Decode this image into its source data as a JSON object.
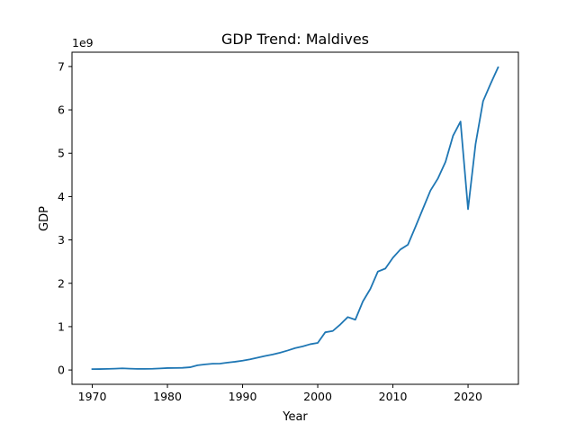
{
  "chart_data": {
    "type": "line",
    "title": "GDP Trend: Maldives",
    "xlabel": "Year",
    "ylabel": "GDP",
    "y_scale_label": "1e9",
    "xlim": [
      1967.3,
      2026.7
    ],
    "ylim": [
      -330000000,
      7330000000
    ],
    "x_ticks": [
      1970,
      1980,
      1990,
      2000,
      2010,
      2020
    ],
    "x_tick_labels": [
      "1970",
      "1980",
      "1990",
      "2000",
      "2010",
      "2020"
    ],
    "y_ticks": [
      0,
      1000000000,
      2000000000,
      3000000000,
      4000000000,
      5000000000,
      6000000000,
      7000000000
    ],
    "y_tick_labels": [
      "0",
      "1",
      "2",
      "3",
      "4",
      "5",
      "6",
      "7"
    ],
    "grid": false,
    "line_color": "#1f77b4",
    "series": [
      {
        "x": [
          1970,
          1971,
          1972,
          1973,
          1974,
          1975,
          1976,
          1977,
          1978,
          1979,
          1980,
          1981,
          1982,
          1983,
          1984,
          1985,
          1986,
          1987,
          1988,
          1989,
          1990,
          1991,
          1992,
          1993,
          1994,
          1995,
          1996,
          1997,
          1998,
          1999,
          2000,
          2001,
          2002,
          2003,
          2004,
          2005,
          2006,
          2007,
          2008,
          2009,
          2010,
          2011,
          2012,
          2013,
          2014,
          2015,
          2016,
          2017,
          2018,
          2019,
          2020,
          2021,
          2022,
          2023,
          2024
        ],
        "values": [
          20000000,
          22000000,
          26000000,
          31000000,
          38000000,
          30000000,
          25000000,
          26000000,
          28000000,
          36000000,
          45000000,
          47000000,
          50000000,
          63000000,
          108000000,
          130000000,
          145000000,
          147000000,
          170000000,
          190000000,
          215000000,
          245000000,
          285000000,
          325000000,
          358000000,
          400000000,
          450000000,
          505000000,
          545000000,
          595000000,
          625000000,
          870000000,
          900000000,
          1050000000,
          1220000000,
          1160000000,
          1580000000,
          1870000000,
          2270000000,
          2340000000,
          2590000000,
          2780000000,
          2890000000,
          3300000000,
          3720000000,
          4140000000,
          4420000000,
          4800000000,
          5400000000,
          5730000000,
          3710000000,
          5210000000,
          6200000000,
          6600000000,
          6980000000
        ]
      }
    ]
  }
}
